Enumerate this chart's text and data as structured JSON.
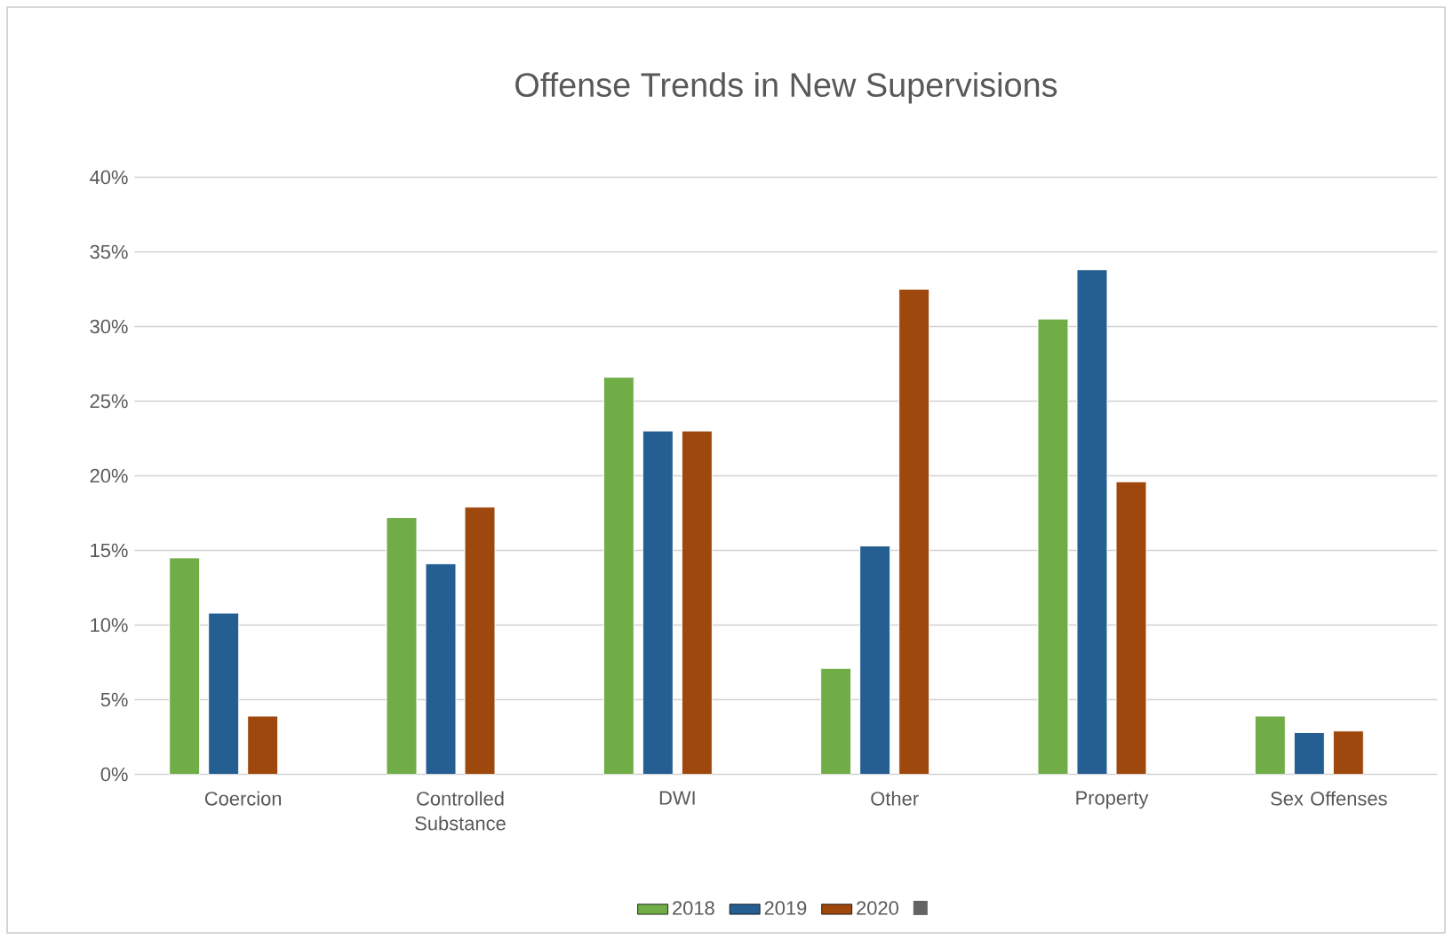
{
  "chart_data": {
    "type": "bar",
    "title": "Offense Trends in New Supervisions",
    "categories": [
      "Coercion",
      "Controlled Substance",
      "DWI",
      "Other",
      "Property",
      "Sex Offenses"
    ],
    "series": [
      {
        "name": "2018",
        "color": "#70ad47",
        "values": [
          14.5,
          17.2,
          26.6,
          7.1,
          30.5,
          3.9
        ]
      },
      {
        "name": "2019",
        "color": "#255e91",
        "values": [
          10.8,
          14.1,
          23.0,
          15.3,
          33.8,
          2.8
        ]
      },
      {
        "name": "2020",
        "color": "#9e480e",
        "values": [
          3.9,
          17.9,
          23.0,
          32.5,
          19.6,
          2.9
        ]
      },
      {
        "color": "#636363",
        "values": [
          null,
          null,
          null,
          null,
          null,
          null
        ]
      }
    ],
    "ylim": [
      0,
      40
    ],
    "yticks": [
      {
        "value": 0,
        "label": "0%"
      },
      {
        "value": 5,
        "label": "5%"
      },
      {
        "value": 10,
        "label": "10%"
      },
      {
        "value": 15,
        "label": "15%"
      },
      {
        "value": 20,
        "label": "20%"
      },
      {
        "value": 25,
        "label": "25%"
      },
      {
        "value": 30,
        "label": "30%"
      },
      {
        "value": 35,
        "label": "35%"
      },
      {
        "value": 40,
        "label": "40%"
      }
    ],
    "grid": "y",
    "legend": "bottom"
  }
}
